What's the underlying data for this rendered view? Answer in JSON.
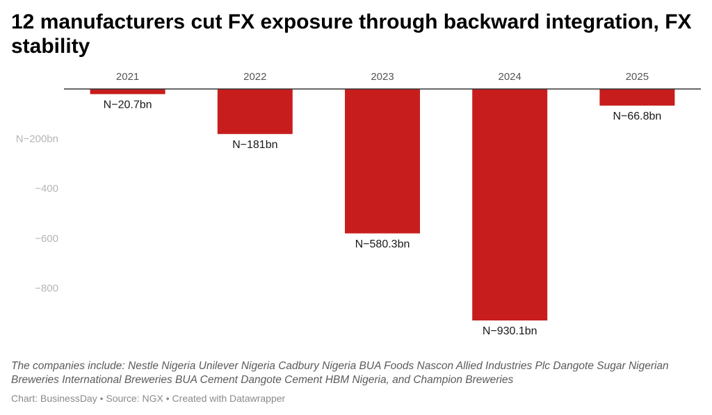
{
  "title": "12 manufacturers cut FX exposure through backward integration, FX stability",
  "notes": "The companies include: Nestle Nigeria Unilever Nigeria Cadbury Nigeria BUA Foods Nascon Allied Industries Plc Dangote Sugar Nigerian Breweries International Breweries BUA Cement Dangote Cement HBM Nigeria, and Champion Breweries",
  "footer": "Chart: BusinessDay • Source: NGX • Created with Datawrapper",
  "colors": {
    "bar": "#c71e1d",
    "baseline": "#333333",
    "tick_text": "#b5b5b5"
  },
  "chart_data": {
    "type": "bar",
    "title": "12 manufacturers cut FX exposure through backward integration, FX stability",
    "categories": [
      "2021",
      "2022",
      "2023",
      "2024",
      "2025"
    ],
    "values": [
      -20.7,
      -181,
      -580.3,
      -930.1,
      -66.8
    ],
    "value_labels": [
      "N−20.7bn",
      "N−181bn",
      "N−580.3bn",
      "N−930.1bn",
      "N−66.8bn"
    ],
    "y_ticks": [
      -200,
      -400,
      -600,
      -800
    ],
    "y_tick_labels": [
      "N−200bn",
      "−400",
      "−600",
      "−800"
    ],
    "ylim": [
      -930.1,
      0
    ],
    "xlabel": "",
    "ylabel": "",
    "category_axis_position": "top",
    "grid": false
  }
}
